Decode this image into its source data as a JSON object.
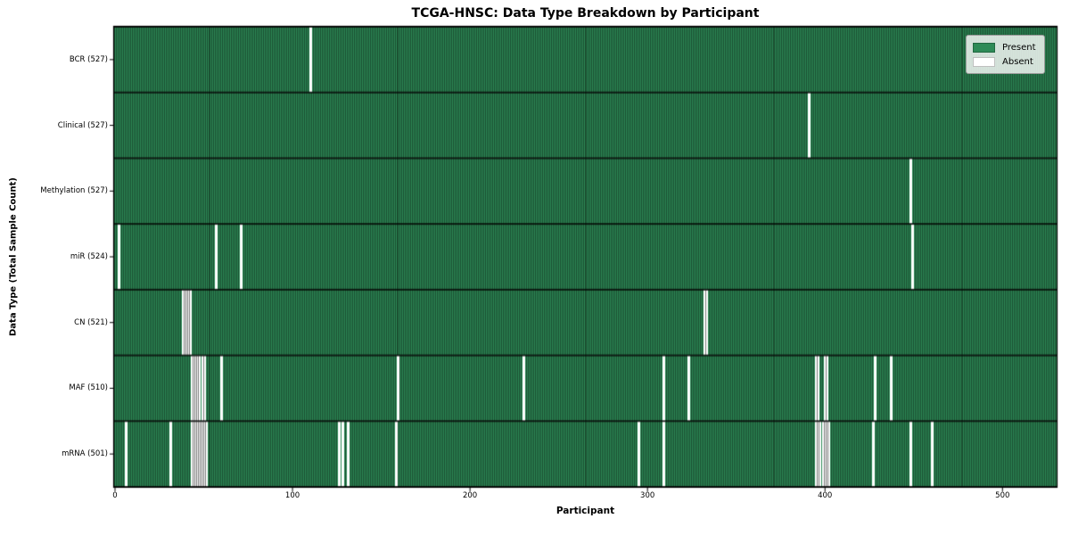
{
  "chart_data": {
    "type": "heatmap",
    "title": "TCGA-HNSC: Data Type Breakdown by Participant",
    "xlabel": "Participant",
    "ylabel": "Data Type (Total Sample Count)",
    "x_ticks": [
      0,
      100,
      200,
      300,
      400,
      500
    ],
    "xlim": [
      -0.5,
      530.5
    ],
    "n_participants": 528,
    "grid": false,
    "legend_position": "upper right",
    "legend": [
      {
        "label": "Present",
        "color": "#2e8b57"
      },
      {
        "label": "Absent",
        "color": "#ffffff"
      }
    ],
    "colors": {
      "present": "#2e8b57",
      "absent": "#ffffff",
      "cell_edge": "#17462c",
      "row_separator": "#0d2418",
      "axis": "#000000",
      "legend_border": "#9a9a9a"
    },
    "rows": [
      {
        "data_type": "BCR",
        "label": "BCR (527)",
        "sample_count": 527,
        "absent_participants": [
          110
        ]
      },
      {
        "data_type": "Clinical",
        "label": "Clinical (527)",
        "sample_count": 527,
        "absent_participants": [
          391
        ]
      },
      {
        "data_type": "Methylation",
        "label": "Methylation (527)",
        "sample_count": 527,
        "absent_participants": [
          448
        ]
      },
      {
        "data_type": "miR",
        "label": "miR (524)",
        "sample_count": 524,
        "absent_participants": [
          2,
          57,
          71,
          449
        ]
      },
      {
        "data_type": "CN",
        "label": "CN (521)",
        "sample_count": 521,
        "absent_participants": [
          38,
          39,
          40,
          41,
          42,
          332,
          333
        ]
      },
      {
        "data_type": "MAF",
        "label": "MAF (510)",
        "sample_count": 510,
        "absent_participants": [
          43,
          44,
          45,
          46,
          47,
          49,
          50,
          60,
          159,
          230,
          309,
          323,
          395,
          396,
          400,
          401,
          428,
          437
        ]
      },
      {
        "data_type": "mRNA",
        "label": "mRNA (501)",
        "sample_count": 501,
        "absent_participants": [
          6,
          31,
          43,
          44,
          45,
          46,
          47,
          48,
          49,
          50,
          51,
          126,
          128,
          131,
          158,
          295,
          309,
          395,
          396,
          397,
          399,
          400,
          401,
          402,
          427,
          448,
          460
        ]
      }
    ]
  }
}
